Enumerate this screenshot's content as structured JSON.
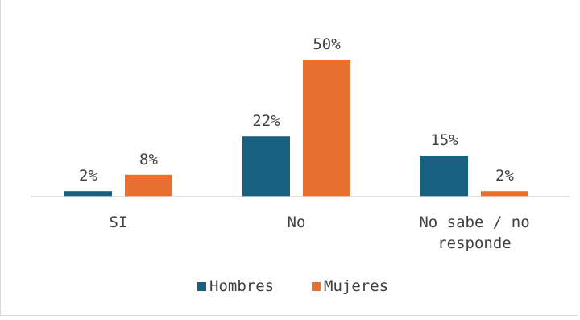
{
  "chart_data": {
    "type": "bar",
    "categories": [
      [
        "SI"
      ],
      [
        "No"
      ],
      [
        "No sabe / no",
        "responde"
      ]
    ],
    "series": [
      {
        "name": "Hombres",
        "color": "#17607f",
        "values": [
          2,
          22,
          15
        ],
        "labels": [
          "2%",
          "22%",
          "15%"
        ]
      },
      {
        "name": "Mujeres",
        "color": "#e87132",
        "values": [
          8,
          50,
          2
        ],
        "labels": [
          "8%",
          "50%",
          "2%"
        ]
      }
    ],
    "ylim": [
      0,
      50
    ],
    "grid": false,
    "legend_position": "bottom"
  }
}
